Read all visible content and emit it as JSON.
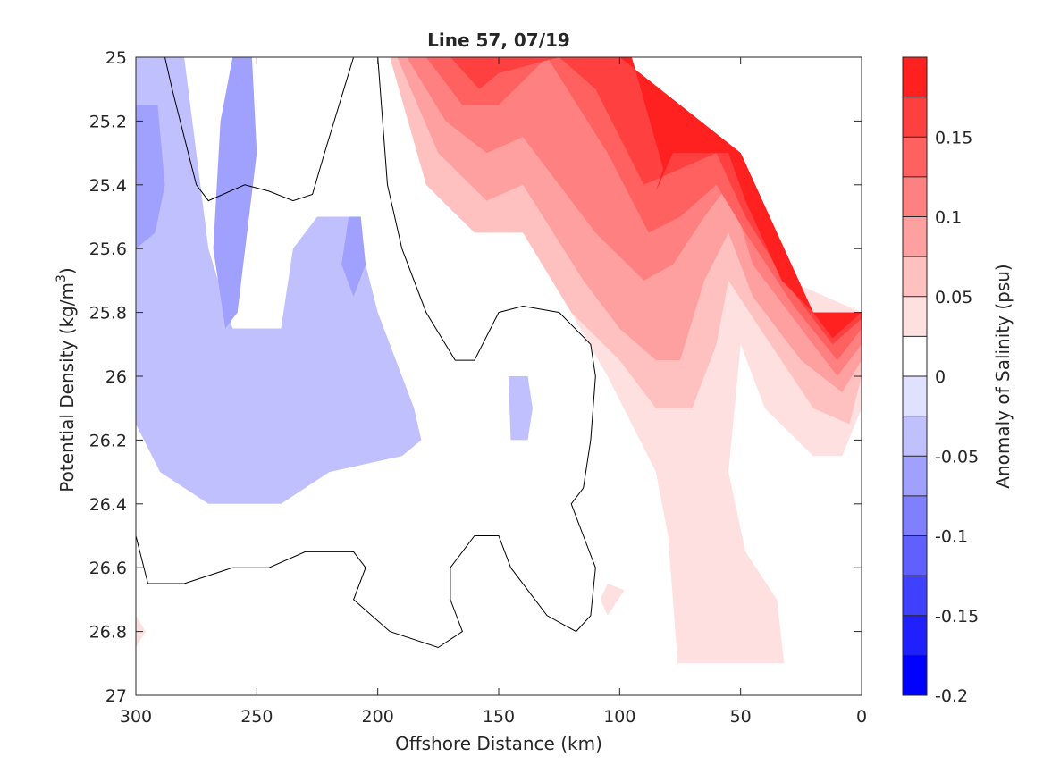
{
  "chart_data": {
    "type": "heatmap",
    "title": "Line 57, 07/19",
    "xlabel": "Offshore Distance (km)",
    "ylabel_base": "Potential Density (kg/m",
    "ylabel_sup": "3",
    "ylabel_close": ")",
    "xlim": [
      300,
      0
    ],
    "ylim": [
      25,
      27
    ],
    "x_reversed": true,
    "y_reversed": true,
    "xticks": [
      300,
      250,
      200,
      150,
      100,
      50,
      0
    ],
    "xtick_labels": [
      "300",
      "250",
      "200",
      "150",
      "100",
      "50",
      "0"
    ],
    "yticks": [
      25,
      25.2,
      25.4,
      25.6,
      25.8,
      26,
      26.2,
      26.4,
      26.6,
      26.8,
      27
    ],
    "ytick_labels": [
      "25",
      "25.2",
      "25.4",
      "25.6",
      "25.8",
      "26",
      "26.2",
      "26.4",
      "26.6",
      "26.8",
      "27"
    ],
    "colorbar": {
      "label": "Anomaly of Salinity (psu)",
      "range": [
        -0.2,
        0.2
      ],
      "levels": [
        -0.2,
        -0.175,
        -0.15,
        -0.125,
        -0.1,
        -0.075,
        -0.05,
        -0.025,
        0,
        0.025,
        0.05,
        0.075,
        0.1,
        0.125,
        0.15,
        0.175,
        0.2
      ],
      "colors": [
        "#0000ff",
        "#2020ff",
        "#4040ff",
        "#6060ff",
        "#8080ff",
        "#a0a0ff",
        "#c0c0ff",
        "#e0e0ff",
        "#ffffff",
        "#ffe0e0",
        "#ffc0c0",
        "#ffa0a0",
        "#ff8080",
        "#ff6060",
        "#ff4040",
        "#ff2020",
        "#ff0000"
      ],
      "ticks": [
        -0.2,
        -0.15,
        -0.1,
        -0.05,
        0,
        0.05,
        0.1,
        0.15
      ],
      "tick_labels": [
        "-0.2",
        "-0.15",
        "-0.1",
        "-0.05",
        "0",
        "0.05",
        "0.1",
        "0.15"
      ]
    },
    "regions": [
      {
        "name": "low-salinity-band-offshore",
        "value": -0.04,
        "points": [
          [
            300,
            25
          ],
          [
            280,
            25
          ],
          [
            275,
            25.3
          ],
          [
            270,
            25.6
          ],
          [
            260,
            25.85
          ],
          [
            240,
            25.85
          ],
          [
            235,
            25.6
          ],
          [
            225,
            25.5
          ],
          [
            210,
            25.5
          ],
          [
            200,
            25.8
          ],
          [
            195,
            25.9
          ],
          [
            185,
            26.1
          ],
          [
            182,
            26.2
          ],
          [
            190,
            26.25
          ],
          [
            220,
            26.3
          ],
          [
            240,
            26.4
          ],
          [
            270,
            26.4
          ],
          [
            290,
            26.3
          ],
          [
            300,
            26.15
          ]
        ]
      },
      {
        "name": "low-salinity-inner",
        "value": -0.04,
        "points": [
          [
            300,
            25.15
          ],
          [
            293,
            25.15
          ],
          [
            290,
            25.45
          ],
          [
            295,
            25.6
          ],
          [
            300,
            25.6
          ]
        ]
      },
      {
        "name": "low-salinity-core-a",
        "value": -0.065,
        "points": [
          [
            300,
            25.15
          ],
          [
            291,
            25.15
          ],
          [
            288,
            25.4
          ],
          [
            292,
            25.55
          ],
          [
            300,
            25.6
          ]
        ]
      },
      {
        "name": "low-salinity-core-b",
        "value": -0.065,
        "points": [
          [
            260,
            25
          ],
          [
            252,
            25
          ],
          [
            250,
            25.3
          ],
          [
            258,
            25.8
          ],
          [
            263,
            25.85
          ],
          [
            268,
            25.6
          ],
          [
            265,
            25.2
          ]
        ]
      },
      {
        "name": "low-salinity-core-c",
        "value": -0.065,
        "points": [
          [
            212,
            25.5
          ],
          [
            207,
            25.5
          ],
          [
            205,
            25.65
          ],
          [
            210,
            25.75
          ],
          [
            215,
            25.65
          ]
        ]
      },
      {
        "name": "low-salinity-patch-d",
        "value": -0.04,
        "points": [
          [
            146,
            26.0
          ],
          [
            138,
            26.0
          ],
          [
            136,
            26.1
          ],
          [
            138,
            26.2
          ],
          [
            145,
            26.2
          ]
        ]
      },
      {
        "name": "high-salinity-band-025",
        "value": 0.04,
        "points": [
          [
            198,
            25
          ],
          [
            175,
            25
          ],
          [
            150,
            25.35
          ],
          [
            130,
            25.5
          ],
          [
            120,
            25.8
          ],
          [
            105,
            26.0
          ],
          [
            95,
            26.15
          ],
          [
            85,
            26.3
          ],
          [
            80,
            26.5
          ],
          [
            76,
            26.9
          ],
          [
            32,
            26.9
          ],
          [
            35,
            26.7
          ],
          [
            48,
            26.55
          ],
          [
            55,
            26.3
          ],
          [
            50,
            25.9
          ],
          [
            40,
            26.1
          ],
          [
            20,
            26.25
          ],
          [
            8,
            26.25
          ],
          [
            0,
            26.1
          ],
          [
            0,
            25.8
          ],
          [
            30,
            25.7
          ],
          [
            50,
            25.3
          ],
          [
            100,
            25
          ]
        ]
      },
      {
        "name": "high-salinity-band-05",
        "value": 0.06,
        "points": [
          [
            195,
            25
          ],
          [
            180,
            25.4
          ],
          [
            160,
            25.55
          ],
          [
            140,
            25.55
          ],
          [
            120,
            25.8
          ],
          [
            100,
            25.95
          ],
          [
            85,
            26.1
          ],
          [
            70,
            26.1
          ],
          [
            60,
            25.9
          ],
          [
            55,
            25.7
          ],
          [
            42,
            25.85
          ],
          [
            20,
            26.1
          ],
          [
            5,
            26.15
          ],
          [
            0,
            26.0
          ],
          [
            0,
            25.8
          ],
          [
            20,
            25.8
          ],
          [
            50,
            25.3
          ],
          [
            100,
            25
          ]
        ]
      },
      {
        "name": "high-salinity-band-075",
        "value": 0.085,
        "points": [
          [
            192,
            25
          ],
          [
            175,
            25.3
          ],
          [
            155,
            25.45
          ],
          [
            140,
            25.4
          ],
          [
            115,
            25.7
          ],
          [
            100,
            25.85
          ],
          [
            85,
            25.95
          ],
          [
            75,
            25.95
          ],
          [
            65,
            25.7
          ],
          [
            55,
            25.55
          ],
          [
            45,
            25.75
          ],
          [
            25,
            25.95
          ],
          [
            8,
            26.05
          ],
          [
            0,
            25.95
          ],
          [
            0,
            25.8
          ],
          [
            20,
            25.8
          ],
          [
            50,
            25.3
          ],
          [
            100,
            25
          ]
        ]
      },
      {
        "name": "high-salinity-band-10",
        "value": 0.11,
        "points": [
          [
            188,
            25
          ],
          [
            172,
            25.2
          ],
          [
            155,
            25.3
          ],
          [
            140,
            25.25
          ],
          [
            110,
            25.55
          ],
          [
            90,
            25.7
          ],
          [
            78,
            25.65
          ],
          [
            65,
            25.5
          ],
          [
            55,
            25.4
          ],
          [
            45,
            25.65
          ],
          [
            25,
            25.85
          ],
          [
            10,
            26.0
          ],
          [
            0,
            25.9
          ],
          [
            0,
            25.8
          ],
          [
            20,
            25.8
          ],
          [
            50,
            25.3
          ],
          [
            100,
            25
          ]
        ]
      },
      {
        "name": "high-salinity-band-125",
        "value": 0.135,
        "points": [
          [
            180,
            25
          ],
          [
            165,
            25.15
          ],
          [
            150,
            25.15
          ],
          [
            130,
            25.0
          ],
          [
            105,
            25.3
          ],
          [
            88,
            25.55
          ],
          [
            75,
            25.5
          ],
          [
            60,
            25.4
          ],
          [
            48,
            25.55
          ],
          [
            28,
            25.78
          ],
          [
            10,
            25.95
          ],
          [
            0,
            25.85
          ],
          [
            0,
            25.8
          ],
          [
            20,
            25.8
          ],
          [
            50,
            25.3
          ],
          [
            100,
            25
          ]
        ]
      },
      {
        "name": "high-salinity-band-15",
        "value": 0.16,
        "points": [
          [
            170,
            25
          ],
          [
            158,
            25.1
          ],
          [
            150,
            25.05
          ],
          [
            125,
            25.0
          ],
          [
            110,
            25.1
          ],
          [
            90,
            25.4
          ],
          [
            75,
            25.35
          ],
          [
            60,
            25.3
          ],
          [
            48,
            25.5
          ],
          [
            30,
            25.72
          ],
          [
            12,
            25.9
          ],
          [
            0,
            25.82
          ],
          [
            0,
            25.8
          ],
          [
            20,
            25.8
          ],
          [
            50,
            25.3
          ],
          [
            100,
            25
          ]
        ]
      },
      {
        "name": "high-salinity-core",
        "value": 0.19,
        "points": [
          [
            102,
            25
          ],
          [
            95,
            25
          ],
          [
            82,
            25.35
          ],
          [
            85,
            25.42
          ],
          [
            78,
            25.3
          ],
          [
            70,
            25.3
          ],
          [
            60,
            25.3
          ],
          [
            55,
            25.3
          ],
          [
            48,
            25.45
          ],
          [
            33,
            25.7
          ],
          [
            20,
            25.8
          ],
          [
            12,
            25.88
          ],
          [
            0,
            25.8
          ],
          [
            20,
            25.8
          ],
          [
            50,
            25.3
          ],
          [
            100,
            25
          ]
        ]
      },
      {
        "name": "high-salinity-patch-far",
        "value": 0.04,
        "points": [
          [
            300,
            26.75
          ],
          [
            296,
            26.8
          ],
          [
            300,
            26.85
          ]
        ]
      },
      {
        "name": "high-salinity-patch-deep",
        "value": 0.04,
        "points": [
          [
            105,
            26.65
          ],
          [
            98,
            26.67
          ],
          [
            105,
            26.75
          ],
          [
            108,
            26.7
          ]
        ]
      }
    ],
    "zero_contours": [
      [
        [
          288,
          25
        ],
        [
          285,
          25.1
        ],
        [
          280,
          25.25
        ],
        [
          275,
          25.4
        ],
        [
          270,
          25.45
        ],
        [
          255,
          25.4
        ],
        [
          245,
          25.42
        ],
        [
          235,
          25.45
        ],
        [
          227,
          25.43
        ],
        [
          222,
          25.3
        ],
        [
          214,
          25.1
        ],
        [
          210,
          25
        ]
      ],
      [
        [
          200,
          25
        ],
        [
          198,
          25.2
        ],
        [
          196,
          25.4
        ],
        [
          190,
          25.6
        ],
        [
          180,
          25.8
        ],
        [
          168,
          25.95
        ],
        [
          160,
          25.95
        ],
        [
          150,
          25.8
        ],
        [
          140,
          25.78
        ],
        [
          125,
          25.8
        ],
        [
          112,
          25.9
        ],
        [
          110,
          26.0
        ],
        [
          112,
          26.2
        ],
        [
          115,
          26.35
        ],
        [
          120,
          26.4
        ],
        [
          115,
          26.5
        ],
        [
          110,
          26.6
        ],
        [
          112,
          26.75
        ],
        [
          118,
          26.8
        ],
        [
          130,
          26.75
        ],
        [
          145,
          26.6
        ],
        [
          150,
          26.5
        ],
        [
          160,
          26.5
        ],
        [
          170,
          26.6
        ],
        [
          170,
          26.7
        ],
        [
          165,
          26.8
        ],
        [
          175,
          26.85
        ],
        [
          195,
          26.8
        ],
        [
          210,
          26.7
        ],
        [
          205,
          26.6
        ],
        [
          210,
          26.55
        ],
        [
          230,
          26.55
        ],
        [
          245,
          26.6
        ],
        [
          260,
          26.6
        ],
        [
          280,
          26.65
        ],
        [
          295,
          26.65
        ],
        [
          300,
          26.5
        ]
      ]
    ]
  }
}
